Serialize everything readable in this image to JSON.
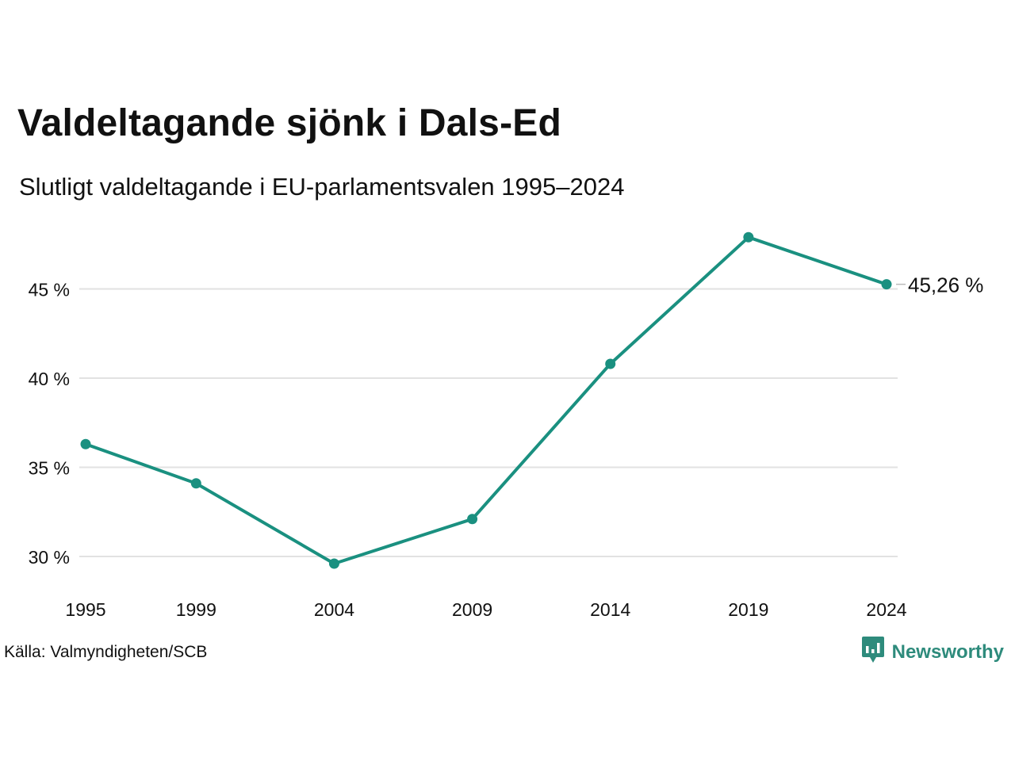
{
  "colors": {
    "line": "#1a9080",
    "grid": "#e2e2e2",
    "text": "#111111",
    "brand": "#2e8b7c"
  },
  "header": {
    "title": "Valdeltagande sjönk i Dals-Ed",
    "subtitle": "Slutligt valdeltagande i EU-parlamentsvalen 1995–2024"
  },
  "footer": {
    "source": "Källa: Valmyndigheten/SCB",
    "brand": "Newsworthy",
    "brand_icon": "bar-chart-speech-bubble-icon"
  },
  "chart_data": {
    "type": "line",
    "x": [
      "1995",
      "1999",
      "2004",
      "2009",
      "2014",
      "2019",
      "2024"
    ],
    "series": [
      {
        "values": [
          36.3,
          34.1,
          29.6,
          32.1,
          40.8,
          47.9,
          45.26
        ]
      }
    ],
    "yticks": [
      {
        "value": 30,
        "label": "30 %"
      },
      {
        "value": 35,
        "label": "35 %"
      },
      {
        "value": 40,
        "label": "40 %"
      },
      {
        "value": 45,
        "label": "45 %"
      }
    ],
    "ylim": [
      28.0,
      50.0
    ],
    "end_label": "45,26 %",
    "grid": true,
    "legend": "none"
  }
}
